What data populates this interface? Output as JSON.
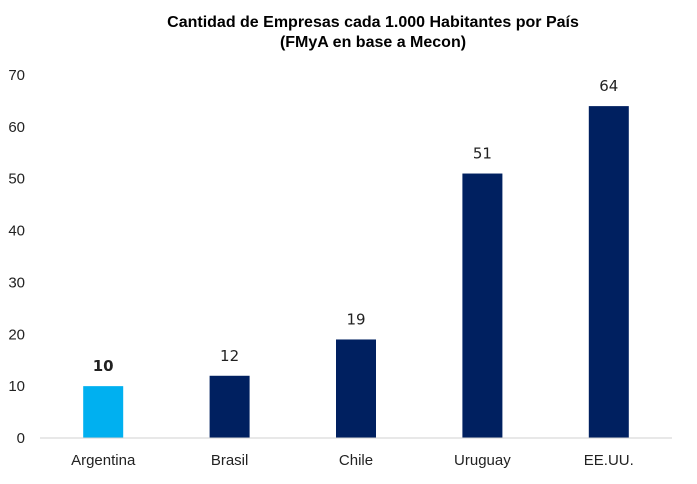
{
  "chart_data": {
    "type": "bar",
    "title": [
      "Cantidad de Empresas cada 1.000 Habitantes por País",
      "(FMyA en base a Mecon)"
    ],
    "xlabel": "",
    "ylabel": "",
    "ylim": [
      0,
      70
    ],
    "yticks": [
      "0",
      "10",
      "20",
      "30",
      "40",
      "50",
      "60",
      "70"
    ],
    "categories": [
      "Argentina",
      "Brasil",
      "Chile",
      "Uruguay",
      "EE.UU."
    ],
    "values": [
      10,
      12,
      19,
      51,
      64
    ],
    "data_labels": [
      "10",
      "12",
      "19",
      "51",
      "64"
    ],
    "bar_colors": [
      "#00B0F0",
      "#002060",
      "#002060",
      "#002060",
      "#002060"
    ],
    "highlight_index": 0,
    "grid": false,
    "legend": "none"
  }
}
